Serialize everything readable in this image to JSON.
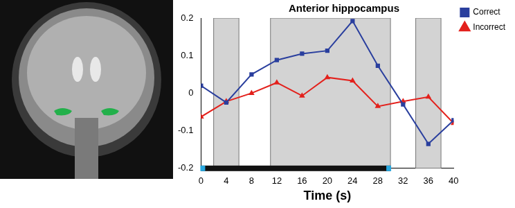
{
  "chart_data": {
    "type": "line",
    "title": "Anterior hippocampus",
    "x_label": "Time (s)",
    "x": [
      0,
      4,
      8,
      12,
      16,
      20,
      24,
      28,
      32,
      36,
      40
    ],
    "series": [
      {
        "name": "Correct",
        "color": "#2a3f9e",
        "marker": "square",
        "values": [
          0.02,
          -0.025,
          0.05,
          0.088,
          0.105,
          0.113,
          0.192,
          0.073,
          -0.03,
          -0.135,
          -0.072
        ]
      },
      {
        "name": "Incorrect",
        "color": "#e3211c",
        "marker": "triangle",
        "values": [
          -0.063,
          -0.022,
          0,
          0.028,
          -0.007,
          0.042,
          0.033,
          -0.035,
          -0.022,
          -0.01,
          -0.08
        ]
      }
    ],
    "xlim": [
      0,
      40
    ],
    "xticks": [
      0,
      4,
      8,
      12,
      16,
      20,
      24,
      28,
      32,
      36,
      40
    ],
    "ylim": [
      -0.2,
      0.2
    ],
    "yticks": [
      -0.2,
      -0.1,
      0,
      0.1,
      0.2
    ],
    "grid": false,
    "legend": "right",
    "shaded_regions": [
      [
        2,
        6
      ],
      [
        11,
        30
      ],
      [
        34,
        38
      ]
    ],
    "stimulus_bar": [
      0,
      30
    ]
  }
}
